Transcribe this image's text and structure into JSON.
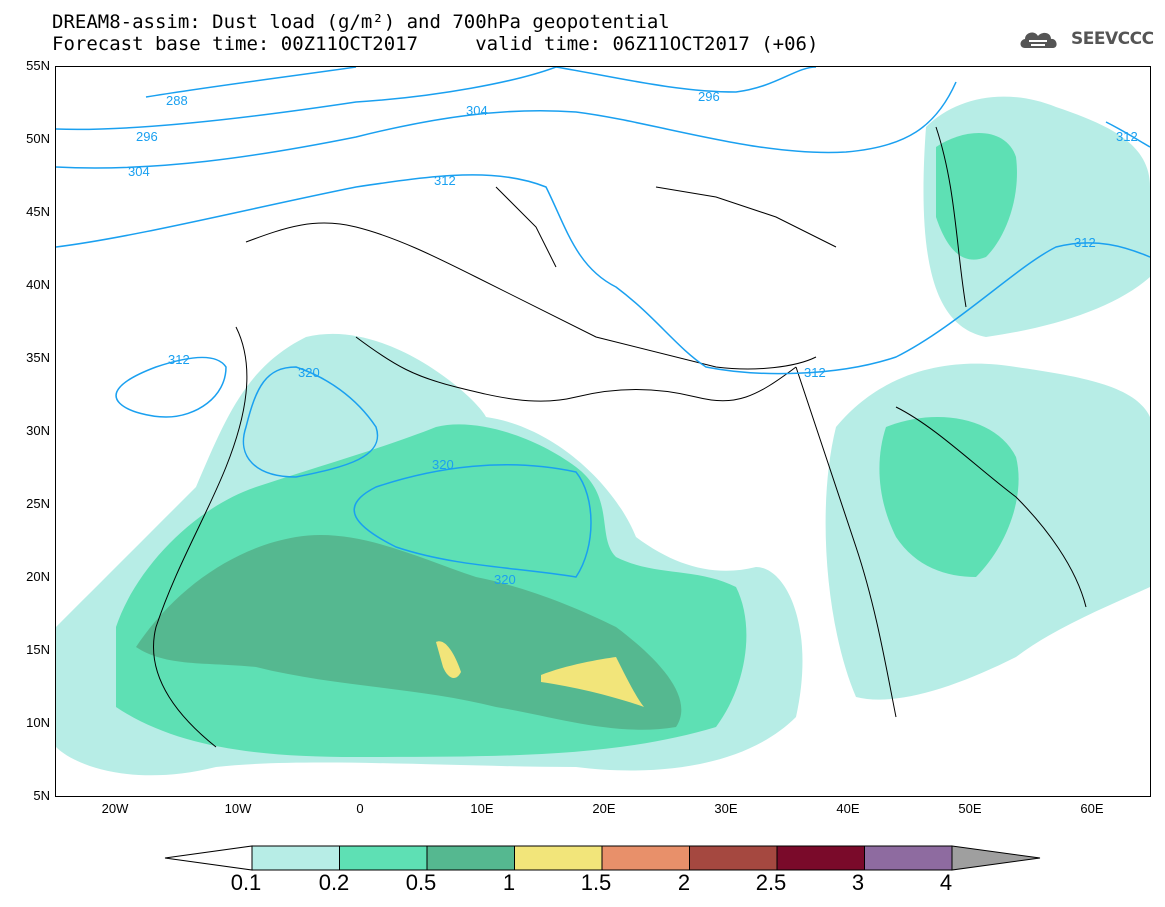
{
  "title": {
    "line1": "DREAM8-assim: Dust load (g/m²) and 700hPa geopotential",
    "line2": "Forecast base time: 00Z11OCT2017     valid time: 06Z11OCT2017 (+06)"
  },
  "logo": {
    "text": "SEEVCCC",
    "icon": "cloud-logo-icon"
  },
  "map": {
    "region": "North Africa, Europe and Middle East",
    "lat_ticks": [
      "55N",
      "50N",
      "45N",
      "40N",
      "35N",
      "30N",
      "25N",
      "20N",
      "15N",
      "10N",
      "5N"
    ],
    "lon_ticks": [
      "20W",
      "10W",
      "0",
      "10E",
      "20E",
      "30E",
      "40E",
      "50E",
      "60E"
    ],
    "contour_labels": [
      "288",
      "296",
      "304",
      "296",
      "304",
      "312",
      "312",
      "312",
      "312",
      "320",
      "320",
      "320",
      "312"
    ],
    "colors": {
      "coastline": "#000000",
      "contour": "#1aa0f0",
      "land_bg": "#ffffff"
    }
  },
  "legend": {
    "labels": [
      "0.1",
      "0.2",
      "0.5",
      "1",
      "1.5",
      "2",
      "2.5",
      "3",
      "4"
    ],
    "colors": [
      "#b7ede6",
      "#5ee0b4",
      "#55b890",
      "#f2e57a",
      "#e8906a",
      "#a54840",
      "#7a0a2a",
      "#8e6ba0",
      "#9f9f9f"
    ],
    "low_end_color": "#ffffff",
    "high_end_color": "#9f9f9f"
  }
}
